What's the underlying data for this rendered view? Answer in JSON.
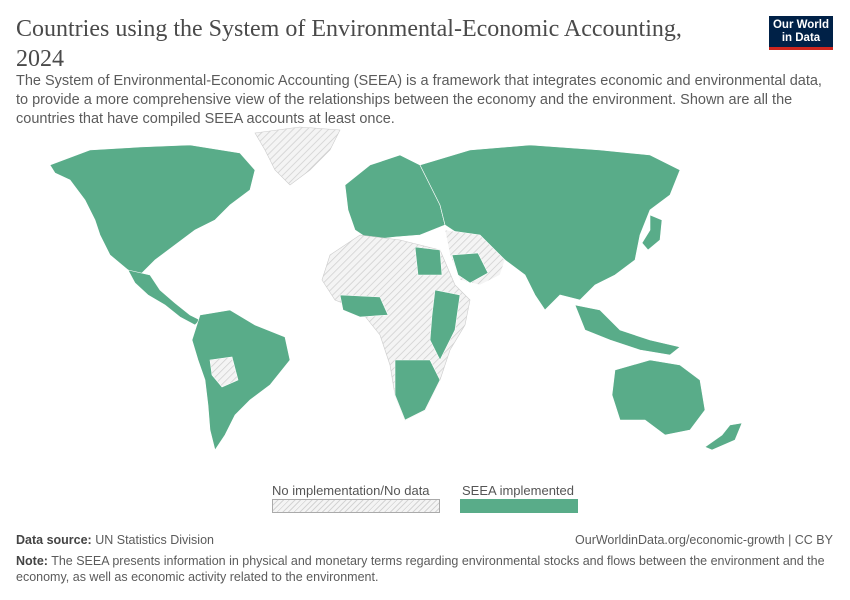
{
  "header": {
    "title": "Countries using the System of Environmental-Economic Accounting, 2024",
    "subtitle": "The System of Environmental-Economic Accounting (SEEA) is a framework that integrates economic and environmental data, to provide a more comprehensive view of the relationships between the economy and the environment. Shown are all the countries that have compiled SEEA accounts at least once.",
    "logo_text": "Our World in Data"
  },
  "chart_data": {
    "type": "map",
    "year": "2024",
    "legend": [
      {
        "label": "No implementation/No data",
        "color": "#e8e8e8",
        "pattern": "hatched"
      },
      {
        "label": "SEEA implemented",
        "color": "#59ac89"
      }
    ],
    "regions": [
      {
        "name": "North America",
        "status": "SEEA implemented"
      },
      {
        "name": "Greenland",
        "status": "No implementation/No data"
      },
      {
        "name": "Central America",
        "status": "mixed"
      },
      {
        "name": "South America",
        "status": "mostly SEEA implemented"
      },
      {
        "name": "Europe",
        "status": "SEEA implemented"
      },
      {
        "name": "Russia",
        "status": "SEEA implemented"
      },
      {
        "name": "Middle East",
        "status": "mixed"
      },
      {
        "name": "Africa",
        "status": "mostly No implementation/No data"
      },
      {
        "name": "South & East Asia",
        "status": "SEEA implemented"
      },
      {
        "name": "Australia & New Zealand",
        "status": "SEEA implemented"
      }
    ]
  },
  "footer": {
    "source_label": "Data source:",
    "source": "UN Statistics Division",
    "url": "OurWorldinData.org/economic-growth | CC BY",
    "note_label": "Note:",
    "note": "The SEEA presents information in physical and monetary terms regarding environmental stocks and flows between the environment and the economy, as well as economic activity related to the environment."
  }
}
